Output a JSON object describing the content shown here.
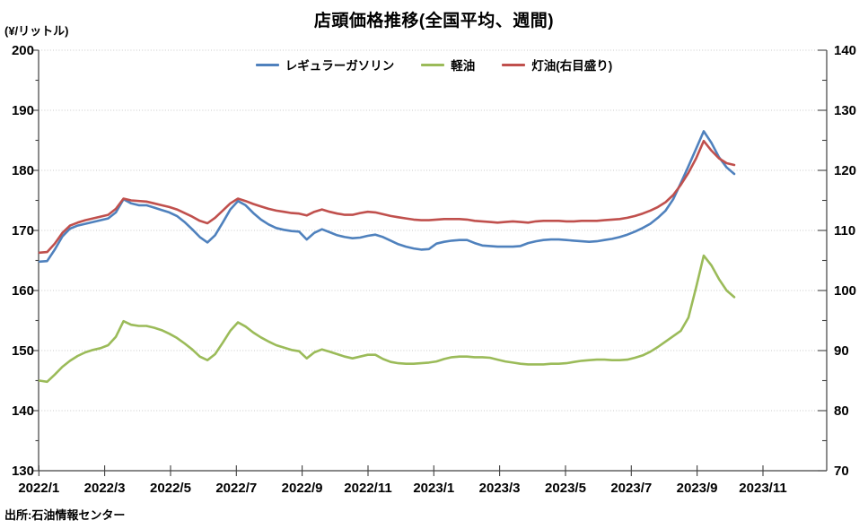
{
  "page": {
    "title": "店頭価格推移(全国平均、週間)",
    "unit_label": "(¥/リットル)",
    "source": "出所:石油情報センター"
  },
  "legend": {
    "items": [
      {
        "label": "レギュラーガソリン",
        "color": "#4F81BD"
      },
      {
        "label": "軽油",
        "color": "#9BBB59"
      },
      {
        "label": "灯油(右目盛り)",
        "color": "#C0504D"
      }
    ]
  },
  "chart_data": {
    "type": "line",
    "title": "店頭価格推移(全国平均、週間)",
    "subtitle": "",
    "frequency": "weekly",
    "grid": "horizontal-dotted",
    "legend_position": "top-center",
    "x_axis": {
      "tick_labels": [
        "2022/1",
        "2022/3",
        "2022/5",
        "2022/7",
        "2022/9",
        "2022/11",
        "2023/1",
        "2023/3",
        "2023/5",
        "2023/7",
        "2023/9",
        "2023/11"
      ],
      "range_note": "weekly points from 2022/1 through 2023/10"
    },
    "left_axis": {
      "label": "(¥/リットル)",
      "min": 130,
      "max": 200,
      "tick_step": 10,
      "minor_tick_step": 5,
      "ticks": [
        200,
        190,
        180,
        170,
        160,
        150,
        140,
        130
      ]
    },
    "right_axis": {
      "label": "灯油(右目盛り)",
      "min": 70,
      "max": 140,
      "tick_step": 10,
      "minor_tick_step": 5,
      "ticks": [
        140,
        130,
        120,
        110,
        100,
        90,
        80,
        70
      ]
    },
    "series": [
      {
        "name": "レギュラーガソリン",
        "axis": "left",
        "color": "#4F81BD",
        "values": [
          164.8,
          164.9,
          166.8,
          169.0,
          170.3,
          170.8,
          171.1,
          171.4,
          171.7,
          172.0,
          173.0,
          175.2,
          174.5,
          174.2,
          174.2,
          173.8,
          173.4,
          173.0,
          172.4,
          171.4,
          170.2,
          168.9,
          168.0,
          169.2,
          171.3,
          173.5,
          174.9,
          174.2,
          172.9,
          171.8,
          171.0,
          170.4,
          170.1,
          169.9,
          169.8,
          168.5,
          169.6,
          170.2,
          169.7,
          169.2,
          168.9,
          168.7,
          168.8,
          169.1,
          169.3,
          168.9,
          168.3,
          167.7,
          167.3,
          167.0,
          166.8,
          166.9,
          167.8,
          168.1,
          168.3,
          168.4,
          168.4,
          167.9,
          167.5,
          167.4,
          167.3,
          167.3,
          167.3,
          167.4,
          167.9,
          168.2,
          168.4,
          168.5,
          168.5,
          168.4,
          168.3,
          168.2,
          168.1,
          168.2,
          168.4,
          168.6,
          168.9,
          169.3,
          169.8,
          170.4,
          171.1,
          172.1,
          173.3,
          175.2,
          177.9,
          180.7,
          183.6,
          186.5,
          184.6,
          182.2,
          180.5,
          179.4
        ]
      },
      {
        "name": "軽油",
        "axis": "left",
        "color": "#9BBB59",
        "values": [
          145.0,
          144.8,
          146.0,
          147.3,
          148.3,
          149.1,
          149.7,
          150.1,
          150.4,
          150.9,
          152.3,
          154.9,
          154.3,
          154.1,
          154.1,
          153.8,
          153.4,
          152.8,
          152.1,
          151.2,
          150.2,
          149.0,
          148.4,
          149.4,
          151.3,
          153.3,
          154.7,
          154.0,
          153.0,
          152.2,
          151.5,
          150.9,
          150.5,
          150.1,
          149.9,
          148.7,
          149.7,
          150.2,
          149.8,
          149.4,
          149.0,
          148.7,
          149.0,
          149.3,
          149.3,
          148.6,
          148.1,
          147.9,
          147.8,
          147.8,
          147.9,
          148.0,
          148.2,
          148.6,
          148.9,
          149.0,
          149.0,
          148.9,
          148.9,
          148.8,
          148.5,
          148.2,
          148.0,
          147.8,
          147.7,
          147.7,
          147.7,
          147.8,
          147.8,
          147.9,
          148.1,
          148.3,
          148.4,
          148.5,
          148.5,
          148.4,
          148.4,
          148.5,
          148.8,
          149.2,
          149.8,
          150.6,
          151.5,
          152.4,
          153.3,
          155.5,
          160.5,
          165.8,
          164.2,
          161.9,
          160.0,
          158.9
        ]
      },
      {
        "name": "灯油(右目盛り)",
        "axis": "right",
        "color": "#C0504D",
        "values": [
          106.3,
          106.4,
          107.8,
          109.6,
          110.8,
          111.3,
          111.7,
          112.0,
          112.3,
          112.6,
          113.6,
          115.3,
          115.0,
          114.9,
          114.8,
          114.5,
          114.2,
          113.9,
          113.5,
          112.9,
          112.3,
          111.6,
          111.2,
          112.1,
          113.3,
          114.5,
          115.3,
          114.9,
          114.4,
          114.0,
          113.6,
          113.3,
          113.1,
          112.9,
          112.8,
          112.5,
          113.1,
          113.5,
          113.1,
          112.8,
          112.6,
          112.6,
          112.9,
          113.1,
          113.0,
          112.7,
          112.4,
          112.2,
          112.0,
          111.8,
          111.7,
          111.7,
          111.8,
          111.9,
          111.9,
          111.9,
          111.8,
          111.6,
          111.5,
          111.4,
          111.3,
          111.4,
          111.5,
          111.4,
          111.3,
          111.5,
          111.6,
          111.6,
          111.6,
          111.5,
          111.5,
          111.6,
          111.6,
          111.6,
          111.7,
          111.8,
          111.9,
          112.1,
          112.4,
          112.8,
          113.3,
          113.9,
          114.7,
          115.9,
          117.6,
          119.6,
          122.0,
          124.9,
          123.3,
          122.0,
          121.2,
          120.9
        ]
      }
    ]
  }
}
